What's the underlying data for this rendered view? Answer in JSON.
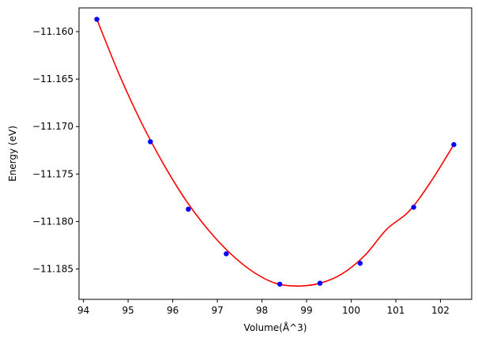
{
  "chart_data": {
    "type": "scatter",
    "title": "",
    "xlabel": "Volume(Å^3)",
    "ylabel": "Energy (eV)",
    "xlim": [
      93.9,
      102.7
    ],
    "ylim": [
      -11.1882,
      -11.1575
    ],
    "x_ticks": [
      94,
      95,
      96,
      97,
      98,
      99,
      100,
      101,
      102
    ],
    "x_tick_labels": [
      "94",
      "95",
      "96",
      "97",
      "98",
      "99",
      "100",
      "101",
      "102"
    ],
    "y_ticks": [
      -11.16,
      -11.165,
      -11.17,
      -11.175,
      -11.18,
      -11.185
    ],
    "y_tick_labels": [
      "−11.160",
      "−11.165",
      "−11.170",
      "−11.175",
      "−11.180",
      "−11.185"
    ],
    "grid": false,
    "legend": "none",
    "series": [
      {
        "kind": "points",
        "color": "#0000ff",
        "marker": "circle",
        "x": [
          94.3,
          95.5,
          96.35,
          97.2,
          98.4,
          99.3,
          100.2,
          101.4,
          102.3
        ],
        "y": [
          -11.1587,
          -11.1716,
          -11.1787,
          -11.1834,
          -11.1866,
          -11.1865,
          -11.1844,
          -11.1785,
          -11.1719
        ]
      },
      {
        "kind": "fit-curve",
        "color": "#ff0000",
        "x": [
          94.3,
          94.8,
          95.3,
          95.8,
          96.3,
          96.8,
          97.3,
          97.8,
          98.3,
          98.8,
          99.3,
          99.8,
          100.3,
          100.8,
          101.3,
          101.8,
          102.3
        ],
        "y": [
          -11.1587,
          -11.1645,
          -11.1696,
          -11.174,
          -11.1778,
          -11.1809,
          -11.1834,
          -11.1853,
          -11.1865,
          -11.1868,
          -11.1865,
          -11.1855,
          -11.1836,
          -11.1808,
          -11.1789,
          -11.1757,
          -11.1719
        ]
      }
    ]
  }
}
